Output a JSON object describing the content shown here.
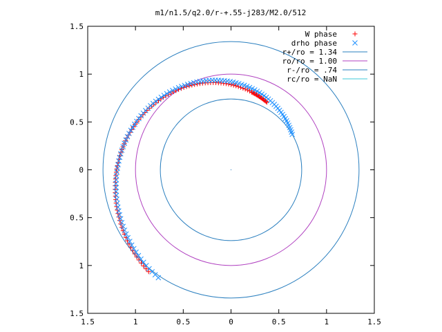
{
  "chart_data": {
    "type": "scatter",
    "title": "m1/n1.5/q2.0/r-+.55-j283/M2.0/512",
    "xlim": [
      -1.5,
      1.5
    ],
    "ylim": [
      -1.5,
      1.5
    ],
    "xticks": [
      -1.5,
      -1,
      -0.5,
      0,
      0.5,
      1,
      1.5
    ],
    "xtick_labels": [
      "1.5",
      "1",
      "0.5",
      "0",
      "0.5",
      "1",
      "1.5"
    ],
    "yticks": [
      1.5,
      1,
      0.5,
      0,
      -0.5,
      -1,
      -1.5
    ],
    "ytick_labels": [
      "1.5",
      "1",
      "0.5",
      "0",
      "0.5",
      "1",
      "1.5"
    ],
    "grid": false,
    "legend_position": "top-right",
    "series": [
      {
        "name": "W phase",
        "kind": "points",
        "marker": "plus",
        "color": "#ff0000",
        "arc": {
          "r_start": 0.84,
          "r_end": 1.37,
          "theta_start_deg": 75,
          "theta_end_deg": 231,
          "count": 95
        },
        "hook": {
          "r_start": 0.84,
          "r_end": 0.8,
          "theta_start_deg": 75,
          "theta_end_deg": 62,
          "count": 18
        }
      },
      {
        "name": "drho phase",
        "kind": "points",
        "marker": "cross",
        "color": "#1e90ff",
        "arc": {
          "r_start": 0.74,
          "r_end": 1.36,
          "theta_start_deg": 30,
          "theta_end_deg": 236,
          "count": 110
        }
      },
      {
        "name": "r+/ro = 1.34",
        "kind": "circle",
        "radius": 1.34,
        "color": "#2a7fbf"
      },
      {
        "name": "ro/ro = 1.00",
        "kind": "circle",
        "radius": 1.0,
        "color": "#b040c0"
      },
      {
        "name": "r-/ro = .74",
        "kind": "circle",
        "radius": 0.74,
        "color": "#2a7fbf"
      },
      {
        "name": "rc/ro = NaN",
        "kind": "line",
        "color": "#3cc8d8"
      }
    ]
  }
}
